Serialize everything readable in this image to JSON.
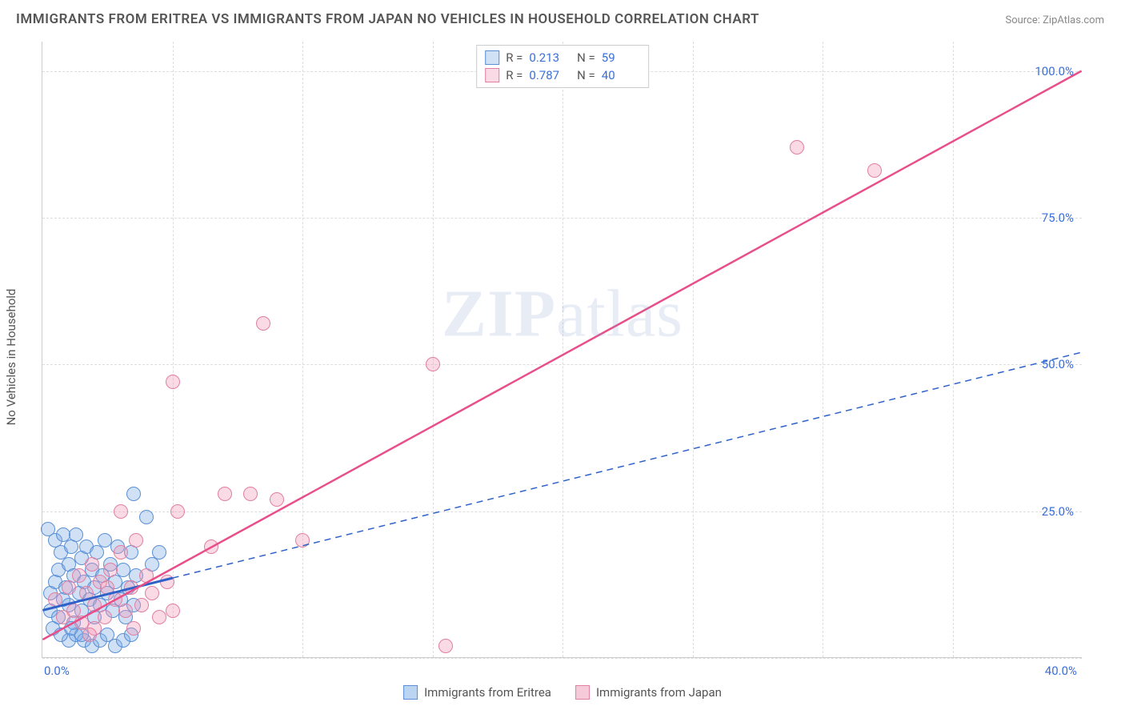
{
  "title": "IMMIGRANTS FROM ERITREA VS IMMIGRANTS FROM JAPAN NO VEHICLES IN HOUSEHOLD CORRELATION CHART",
  "source": "Source: ZipAtlas.com",
  "ylabel": "No Vehicles in Household",
  "watermark_a": "ZIP",
  "watermark_b": "atlas",
  "chart": {
    "type": "scatter",
    "xlim": [
      0,
      40
    ],
    "ylim": [
      0,
      105
    ],
    "x_ticks": [
      0,
      40
    ],
    "x_tick_labels": [
      "0.0%",
      "40.0%"
    ],
    "y_ticks": [
      25,
      50,
      75,
      100
    ],
    "y_tick_labels": [
      "25.0%",
      "50.0%",
      "75.0%",
      "100.0%"
    ],
    "grid_h": [
      0,
      25,
      50,
      75,
      100
    ],
    "grid_v_count": 7,
    "grid_color": "#dddddd",
    "background_color": "#ffffff",
    "marker_radius": 9,
    "series": [
      {
        "name": "Immigrants from Eritrea",
        "fill": "rgba(120,170,230,0.35)",
        "stroke": "#5a8fd6",
        "trend_color": "#2f62c9",
        "trend_style": "solid-then-dash",
        "R": "0.213",
        "N": "59",
        "trend": {
          "x1": 0,
          "y1": 8,
          "x2": 40,
          "y2": 52,
          "solid_until_x": 5
        },
        "points": [
          [
            0.2,
            22
          ],
          [
            0.3,
            11
          ],
          [
            0.3,
            8
          ],
          [
            0.5,
            20
          ],
          [
            0.5,
            13
          ],
          [
            0.6,
            15
          ],
          [
            0.6,
            7
          ],
          [
            0.7,
            18
          ],
          [
            0.8,
            21
          ],
          [
            0.8,
            10
          ],
          [
            0.9,
            12
          ],
          [
            1.0,
            16
          ],
          [
            1.0,
            9
          ],
          [
            1.1,
            19
          ],
          [
            1.2,
            14
          ],
          [
            1.2,
            6
          ],
          [
            1.3,
            21
          ],
          [
            1.4,
            11
          ],
          [
            1.5,
            17
          ],
          [
            1.5,
            8
          ],
          [
            1.6,
            13
          ],
          [
            1.7,
            19
          ],
          [
            1.8,
            10
          ],
          [
            1.9,
            15
          ],
          [
            2.0,
            12
          ],
          [
            2.0,
            7
          ],
          [
            2.1,
            18
          ],
          [
            2.2,
            9
          ],
          [
            2.3,
            14
          ],
          [
            2.4,
            20
          ],
          [
            2.5,
            11
          ],
          [
            2.6,
            16
          ],
          [
            2.7,
            8
          ],
          [
            2.8,
            13
          ],
          [
            2.9,
            19
          ],
          [
            3.0,
            10
          ],
          [
            3.1,
            15
          ],
          [
            3.2,
            7
          ],
          [
            3.3,
            12
          ],
          [
            3.4,
            18
          ],
          [
            3.5,
            9
          ],
          [
            3.6,
            14
          ],
          [
            3.5,
            28
          ],
          [
            1.0,
            3
          ],
          [
            1.3,
            4
          ],
          [
            1.6,
            3
          ],
          [
            1.9,
            2
          ],
          [
            2.2,
            3
          ],
          [
            2.5,
            4
          ],
          [
            2.8,
            2
          ],
          [
            3.1,
            3
          ],
          [
            3.4,
            4
          ],
          [
            0.4,
            5
          ],
          [
            0.7,
            4
          ],
          [
            1.1,
            5
          ],
          [
            1.5,
            4
          ],
          [
            4.0,
            24
          ],
          [
            4.2,
            16
          ],
          [
            4.5,
            18
          ]
        ]
      },
      {
        "name": "Immigrants from Japan",
        "fill": "rgba(240,150,180,0.35)",
        "stroke": "#e07fa3",
        "trend_color": "#e84f8a",
        "trend_style": "solid",
        "R": "0.787",
        "N": "40",
        "trend": {
          "x1": 0,
          "y1": 3,
          "x2": 40,
          "y2": 100
        },
        "points": [
          [
            0.5,
            10
          ],
          [
            0.8,
            7
          ],
          [
            1.0,
            12
          ],
          [
            1.2,
            8
          ],
          [
            1.4,
            14
          ],
          [
            1.5,
            6
          ],
          [
            1.7,
            11
          ],
          [
            1.9,
            16
          ],
          [
            2.0,
            9
          ],
          [
            2.2,
            13
          ],
          [
            2.4,
            7
          ],
          [
            2.6,
            15
          ],
          [
            2.8,
            10
          ],
          [
            3.0,
            18
          ],
          [
            3.2,
            8
          ],
          [
            3.4,
            12
          ],
          [
            3.6,
            20
          ],
          [
            3.8,
            9
          ],
          [
            4.0,
            14
          ],
          [
            4.2,
            11
          ],
          [
            4.5,
            7
          ],
          [
            4.8,
            13
          ],
          [
            5.0,
            8
          ],
          [
            5.2,
            25
          ],
          [
            3.0,
            25
          ],
          [
            6.5,
            19
          ],
          [
            7.0,
            28
          ],
          [
            8.0,
            28
          ],
          [
            9.0,
            27
          ],
          [
            10.0,
            20
          ],
          [
            5.0,
            47
          ],
          [
            8.5,
            57
          ],
          [
            15.0,
            50
          ],
          [
            15.5,
            2
          ],
          [
            29.0,
            87
          ],
          [
            32.0,
            83
          ],
          [
            2.0,
            5
          ],
          [
            3.5,
            5
          ],
          [
            1.8,
            4
          ],
          [
            2.5,
            12
          ]
        ]
      }
    ]
  },
  "legend_bottom": [
    {
      "label": "Immigrants from Eritrea",
      "fill": "rgba(120,170,230,0.5)",
      "stroke": "#5a8fd6"
    },
    {
      "label": "Immigrants from Japan",
      "fill": "rgba(240,150,180,0.5)",
      "stroke": "#e07fa3"
    }
  ]
}
